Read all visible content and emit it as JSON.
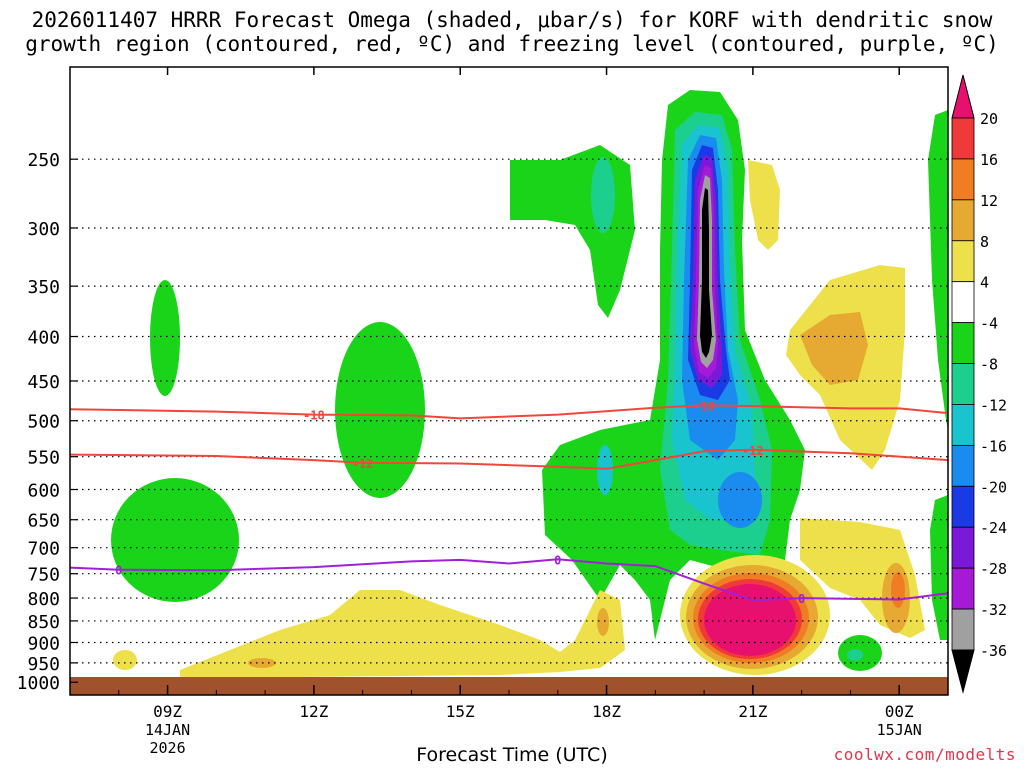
{
  "title_line1": "2026011407 HRRR Forecast Omega (shaded, μbar/s) for KORF with dendritic snow",
  "title_line2": "growth region (contoured, red, ºC) and freezing level (contoured, purple, ºC)",
  "credit": "coolwx.com/modelts",
  "chart_data": {
    "type": "contour-cross-section",
    "xlabel": "Forecast Time (UTC)",
    "ylabel": "",
    "x_range_hours_after_07Z": [
      0,
      18
    ],
    "y_range_hPa": [
      1000,
      200
    ],
    "y_ticks": [
      250,
      300,
      350,
      400,
      450,
      500,
      550,
      600,
      650,
      700,
      750,
      800,
      850,
      900,
      950,
      1000
    ],
    "x_ticks": [
      {
        "hour": 2,
        "label": "09Z",
        "sub1": "14JAN",
        "sub2": "2026"
      },
      {
        "hour": 5,
        "label": "12Z",
        "sub1": "",
        "sub2": ""
      },
      {
        "hour": 8,
        "label": "15Z",
        "sub1": "",
        "sub2": ""
      },
      {
        "hour": 11,
        "label": "18Z",
        "sub1": "",
        "sub2": ""
      },
      {
        "hour": 14,
        "label": "21Z",
        "sub1": "",
        "sub2": ""
      },
      {
        "hour": 17,
        "label": "00Z",
        "sub1": "15JAN",
        "sub2": ""
      }
    ],
    "colorbar": {
      "labels": [
        "20",
        "16",
        "12",
        "8",
        "4",
        "-4",
        "-8",
        "-12",
        "-16",
        "-20",
        "-24",
        "-28",
        "-32",
        "-36"
      ],
      "colors": [
        "#e8106e",
        "#f03a3a",
        "#f07d23",
        "#e6a932",
        "#ede04a",
        "#ffffff",
        "#1ad41a",
        "#1dcf8f",
        "#19c4cf",
        "#1a8cf0",
        "#1a3ae6",
        "#7a1ad8",
        "#a51ad6",
        "#a0a0a0",
        "#000000"
      ]
    },
    "contours": [
      {
        "name": "-18",
        "color": "#f0463c",
        "label": "-18",
        "points": [
          [
            0,
            485
          ],
          [
            3,
            488
          ],
          [
            5,
            492
          ],
          [
            7,
            493
          ],
          [
            8,
            497
          ],
          [
            10,
            492
          ],
          [
            12,
            483
          ],
          [
            13,
            480
          ],
          [
            14,
            481
          ],
          [
            16,
            484
          ],
          [
            17,
            484
          ],
          [
            18,
            490
          ]
        ],
        "label_at": [
          [
            5,
            492
          ],
          [
            13,
            480
          ]
        ]
      },
      {
        "name": "-12",
        "color": "#f0463c",
        "label": "-12",
        "points": [
          [
            0,
            547
          ],
          [
            3,
            549
          ],
          [
            5,
            555
          ],
          [
            6,
            559
          ],
          [
            8,
            560
          ],
          [
            10,
            565
          ],
          [
            11,
            568
          ],
          [
            12,
            555
          ],
          [
            13,
            542
          ],
          [
            14,
            540
          ],
          [
            16,
            545
          ],
          [
            18,
            555
          ]
        ],
        "label_at": [
          [
            6,
            559
          ],
          [
            14,
            540
          ]
        ]
      },
      {
        "name": "0",
        "color": "#a020d8",
        "label": "0",
        "points": [
          [
            0,
            738
          ],
          [
            1,
            742
          ],
          [
            3,
            743
          ],
          [
            5,
            737
          ],
          [
            7,
            726
          ],
          [
            8,
            723
          ],
          [
            9,
            730
          ],
          [
            10,
            722
          ],
          [
            11,
            730
          ],
          [
            12,
            735
          ],
          [
            13,
            770
          ],
          [
            14,
            805
          ],
          [
            15,
            800
          ],
          [
            17,
            803
          ],
          [
            18,
            790
          ]
        ],
        "label_at": [
          [
            1,
            742
          ],
          [
            10,
            722
          ],
          [
            15,
            800
          ]
        ]
      }
    ],
    "regions": [
      {
        "name": "ascent-core",
        "min_value": -36,
        "location_hours": [
          13.0,
          14.2
        ],
        "pressure_hPa": [
          230,
          500
        ]
      },
      {
        "name": "descent-core",
        "max_value": 20,
        "location_hours": [
          13.4,
          14.8
        ],
        "pressure_hPa": [
          780,
          940
        ]
      }
    ]
  }
}
